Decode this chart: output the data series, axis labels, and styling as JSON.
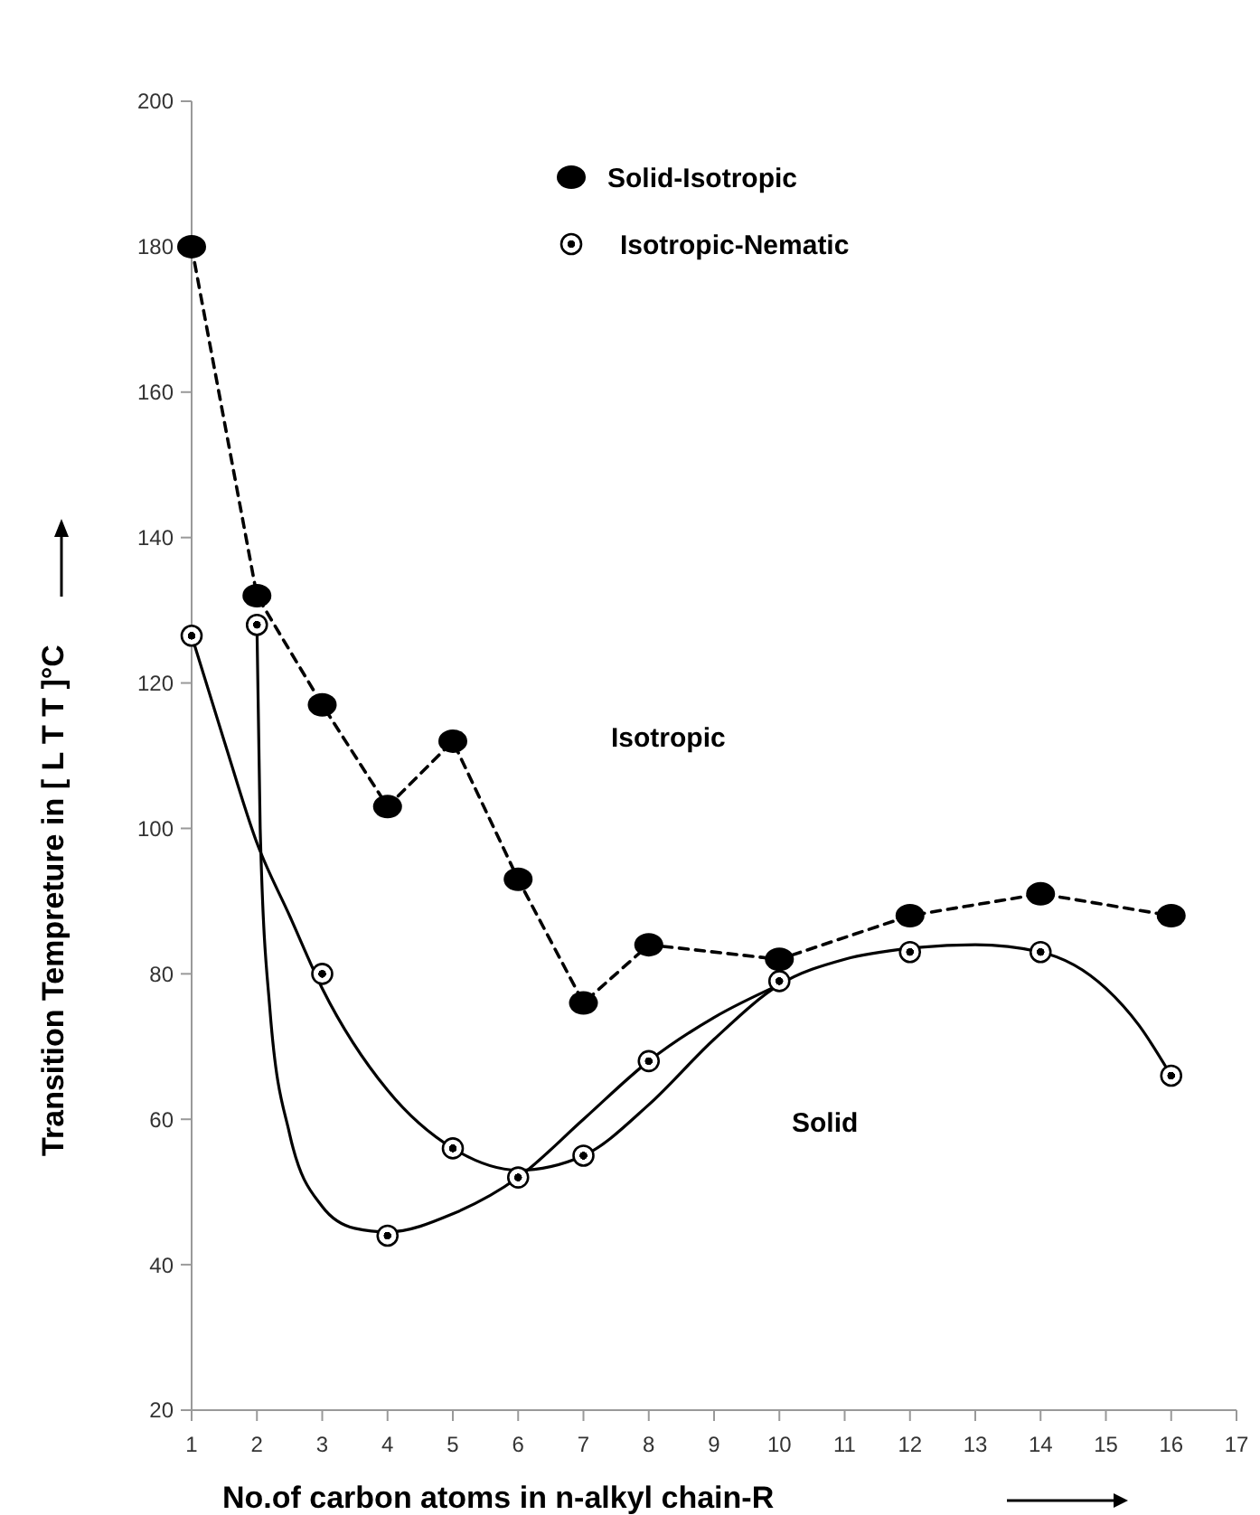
{
  "chart_data": {
    "type": "line",
    "xlabel": "No.of carbon atoms in n-alkyl chain-R",
    "ylabel": "Transition Tempreture in [ L T T ]°C",
    "xlim": [
      1,
      17
    ],
    "xticks": [
      1,
      2,
      3,
      4,
      5,
      6,
      7,
      8,
      9,
      10,
      11,
      12,
      13,
      14,
      15,
      16,
      17
    ],
    "ylim": [
      20,
      200
    ],
    "yticks": [
      20,
      40,
      60,
      80,
      100,
      120,
      140,
      160,
      180,
      200
    ],
    "grid": false,
    "legend": "top",
    "annotations": [
      "Isotropic",
      "Solid"
    ],
    "series": [
      {
        "name": "Solid-Isotropic",
        "color": "#000000",
        "marker": "circle",
        "line_style": "dashed",
        "x": [
          1,
          2,
          3,
          4,
          5,
          6,
          7,
          8,
          10,
          12,
          14,
          16
        ],
        "values": [
          180,
          132,
          117,
          103,
          112,
          93,
          76,
          84,
          82,
          88,
          91,
          88
        ]
      },
      {
        "name": "Isotropic-Nematic",
        "type": "scatter",
        "color": "#000000",
        "marker": "circle",
        "x": [
          1,
          2,
          3,
          4,
          5,
          6,
          7,
          8,
          10,
          12,
          14,
          16
        ],
        "values": [
          126.5,
          128,
          80,
          44,
          56,
          52,
          55,
          68,
          79,
          83,
          83,
          66
        ]
      },
      {
        "color": "#000000",
        "marker": "none",
        "line_style": "solid",
        "x": [
          1,
          1.5,
          2,
          2.5,
          3,
          4,
          5,
          6,
          7,
          8,
          9,
          10,
          11,
          12,
          13,
          14,
          15,
          15.5,
          16
        ],
        "values": [
          126.5,
          112,
          98,
          88,
          78,
          64,
          56,
          53,
          55,
          62,
          71,
          78.5,
          82,
          83.5,
          84,
          83,
          78,
          73,
          66
        ]
      },
      {
        "color": "#000000",
        "marker": "none",
        "line_style": "solid",
        "x": [
          2,
          2.05,
          2.2,
          2.5,
          3,
          3.5,
          4,
          5,
          6,
          7,
          8,
          9,
          10
        ],
        "values": [
          128,
          100,
          75,
          58,
          48,
          45,
          44.5,
          47,
          52,
          60,
          68,
          74,
          78.5
        ]
      }
    ]
  }
}
